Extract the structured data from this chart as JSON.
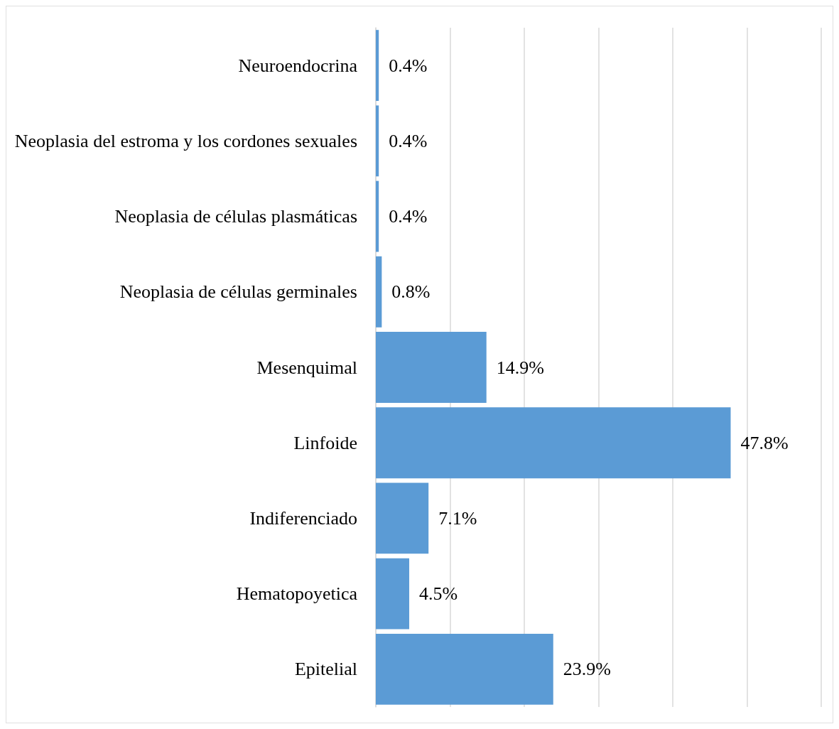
{
  "chart_data": {
    "type": "bar",
    "orientation": "horizontal",
    "categories": [
      "Neuroendocrina",
      "Neoplasia del estroma y los cordones sexuales",
      "Neoplasia de células plasmáticas",
      "Neoplasia de células germinales",
      "Mesenquimal",
      "Linfoide",
      "Indiferenciado",
      "Hematopoyetica",
      "Epitelial"
    ],
    "values": [
      0.4,
      0.4,
      0.4,
      0.8,
      14.9,
      47.8,
      7.1,
      4.5,
      23.9
    ],
    "value_labels": [
      "0.4%",
      "0.4%",
      "0.4%",
      "0.8%",
      "14.9%",
      "47.8%",
      "7.1%",
      "4.5%",
      "23.9%"
    ],
    "color": "#5b9bd5",
    "xlim": [
      0,
      60
    ],
    "xticks": [
      {
        "value": 0,
        "label": null
      },
      {
        "value": 10,
        "label": null
      },
      {
        "value": 20,
        "label": null
      },
      {
        "value": 30,
        "label": null
      },
      {
        "value": 40,
        "label": null
      },
      {
        "value": 50,
        "label": null
      },
      {
        "value": 60,
        "label": null
      }
    ],
    "grid": "x",
    "tick_labels": "y"
  }
}
